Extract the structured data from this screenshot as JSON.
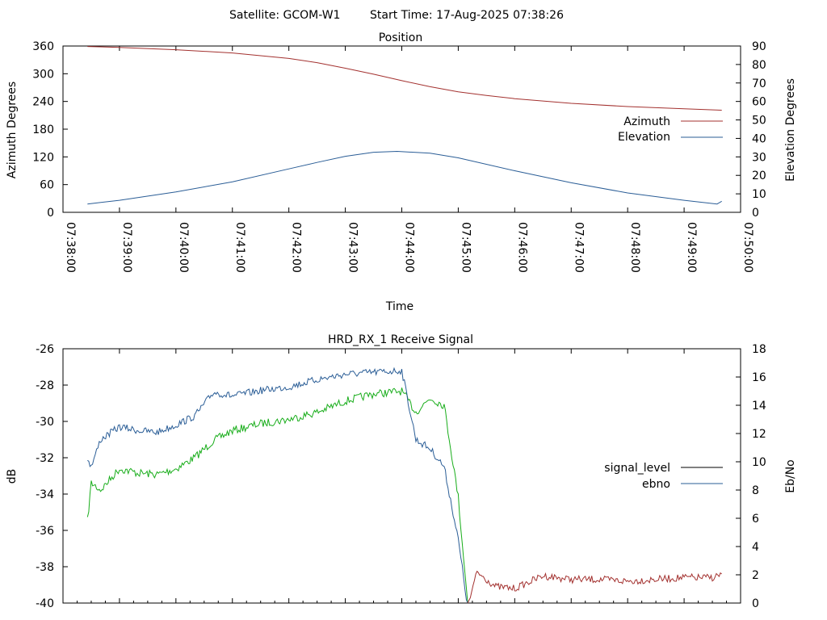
{
  "header": {
    "satellite_text": "Satellite: GCOM-W1",
    "start_time_text": "Start Time: 17-Aug-2025 07:38:26"
  },
  "colors": {
    "azimuth": "#a3312f",
    "elevation": "#2a5d96",
    "signal_pre": "#2a5d96",
    "signal_post": "#a3312f",
    "ebno": "#18ad1a",
    "legend_signal": "#000000",
    "legend_ebno": "#2a5d96",
    "axis": "#000000"
  },
  "chart_data": [
    {
      "type": "line",
      "title": "Position",
      "xlabel": "Time",
      "ylabel": "Azimuth Degrees",
      "y2label": "Elevation Degrees",
      "xlim": [
        "07:38:00",
        "07:50:00"
      ],
      "ylim": [
        0,
        360
      ],
      "y2lim": [
        0,
        90
      ],
      "x_ticks": [
        "07:38:00",
        "07:39:00",
        "07:40:00",
        "07:41:00",
        "07:42:00",
        "07:43:00",
        "07:44:00",
        "07:45:00",
        "07:46:00",
        "07:47:00",
        "07:48:00",
        "07:49:00",
        "07:50:00"
      ],
      "y_ticks": [
        "0",
        "60",
        "120",
        "180",
        "240",
        "300",
        "360"
      ],
      "y2_ticks": [
        "0",
        "10",
        "20",
        "30",
        "40",
        "50",
        "60",
        "70",
        "80",
        "90"
      ],
      "legend_position": "right",
      "series": [
        {
          "name": "Azimuth",
          "axis": "left",
          "x": [
            "07:38:26",
            "07:39:00",
            "07:40:00",
            "07:41:00",
            "07:42:00",
            "07:42:30",
            "07:43:00",
            "07:43:30",
            "07:44:00",
            "07:44:30",
            "07:45:00",
            "07:45:30",
            "07:46:00",
            "07:47:00",
            "07:48:00",
            "07:49:00",
            "07:49:40"
          ],
          "values": [
            359,
            357,
            352,
            345,
            333,
            324,
            312,
            299,
            285,
            272,
            261,
            253,
            246,
            236,
            229,
            224,
            221
          ]
        },
        {
          "name": "Elevation",
          "axis": "right",
          "x": [
            "07:38:26",
            "07:39:00",
            "07:40:00",
            "07:41:00",
            "07:42:00",
            "07:42:30",
            "07:43:00",
            "07:43:30",
            "07:43:55",
            "07:44:30",
            "07:45:00",
            "07:46:00",
            "07:47:00",
            "07:48:00",
            "07:49:00",
            "07:49:35",
            "07:49:40"
          ],
          "values": [
            4.5,
            6.5,
            11,
            16.5,
            23.5,
            27,
            30.3,
            32.5,
            33,
            32,
            29.5,
            22.5,
            16,
            10.5,
            6.5,
            4.5,
            6
          ]
        }
      ]
    },
    {
      "type": "line",
      "title": "HRD_RX_1 Receive Signal",
      "xlabel": "",
      "ylabel": "dB",
      "y2label": "Eb/No",
      "xlim": [
        "07:38:00",
        "07:50:00"
      ],
      "ylim": [
        -40,
        -26
      ],
      "y2lim": [
        0,
        18
      ],
      "y_ticks": [
        "-26",
        "-28",
        "-30",
        "-32",
        "-34",
        "-36",
        "-38",
        "-40"
      ],
      "y2_ticks": [
        "0",
        "2",
        "4",
        "6",
        "8",
        "10",
        "12",
        "14",
        "16",
        "18"
      ],
      "legend_position": "right",
      "series": [
        {
          "name": "signal_level",
          "axis": "left",
          "x": [
            "07:38:26",
            "07:38:30",
            "07:38:40",
            "07:39:00",
            "07:39:20",
            "07:39:40",
            "07:40:00",
            "07:40:20",
            "07:40:40",
            "07:41:00",
            "07:41:30",
            "07:42:00",
            "07:42:30",
            "07:43:00",
            "07:43:30",
            "07:44:00",
            "07:44:15",
            "07:44:30",
            "07:44:45",
            "07:45:00",
            "07:45:10",
            "07:45:20",
            "07:45:40",
            "07:46:00",
            "07:46:30",
            "07:47:00",
            "07:47:30",
            "07:48:00",
            "07:48:30",
            "07:49:00",
            "07:49:30",
            "07:49:40"
          ],
          "values": [
            -32,
            -32.5,
            -31,
            -30.3,
            -30.5,
            -30.6,
            -30.2,
            -29.7,
            -28.4,
            -28.6,
            -28.3,
            -28.1,
            -27.7,
            -27.4,
            -27.3,
            -27.2,
            -31,
            -31.5,
            -32.5,
            -36.5,
            -40.2,
            -38.3,
            -39.1,
            -39.2,
            -38.5,
            -38.7,
            -38.7,
            -38.8,
            -38.7,
            -38.6,
            -38.6,
            -38.4
          ]
        },
        {
          "name": "ebno",
          "axis": "right",
          "x": [
            "07:38:26",
            "07:38:30",
            "07:38:40",
            "07:39:00",
            "07:39:20",
            "07:39:40",
            "07:40:00",
            "07:40:20",
            "07:40:40",
            "07:41:00",
            "07:41:30",
            "07:42:00",
            "07:42:30",
            "07:43:00",
            "07:43:30",
            "07:44:00",
            "07:44:15",
            "07:44:30",
            "07:44:45",
            "07:45:00",
            "07:45:10"
          ],
          "values": [
            5.8,
            8.5,
            8,
            9.5,
            9.2,
            9.1,
            9.5,
            10.3,
            11.5,
            12.2,
            12.7,
            13,
            13.5,
            14.3,
            14.8,
            15,
            13.5,
            14.5,
            14,
            7.5,
            0
          ]
        }
      ]
    }
  ]
}
